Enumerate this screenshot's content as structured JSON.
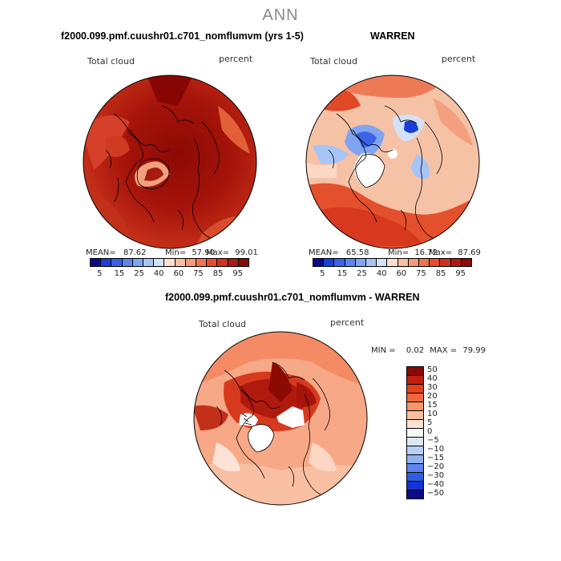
{
  "main_title": "ANN",
  "panels": [
    {
      "title": "f2000.099.pmf.cuushr01.c701_nomflumvm (yrs 1-5)",
      "variable": "Total cloud",
      "units": "percent",
      "stats": {
        "mean_label": "MEAN=",
        "mean": "87.62",
        "min_label": "Min=",
        "min": "57.90",
        "max_label": "Max=",
        "max": "99.01"
      }
    },
    {
      "title": "WARREN",
      "variable": "Total cloud",
      "units": "percent",
      "stats": {
        "mean_label": "MEAN=",
        "mean": "65.58",
        "min_label": "Min=",
        "min": "16.72",
        "max_label": "Max=",
        "max": "87.69"
      }
    },
    {
      "title": "f2000.099.pmf.cuushr01.c701_nomflumvm - WARREN",
      "variable": "Total cloud",
      "units": "percent",
      "minmax": {
        "min_label": "MIN =",
        "min": "0.02",
        "max_label": "MAX =",
        "max": "79.99"
      }
    }
  ],
  "abs_colorbar": {
    "colors": [
      "#0a0a8c",
      "#1a3fd6",
      "#3a63e6",
      "#5c85ee",
      "#7fa4f2",
      "#a8c4f6",
      "#d3e2fa",
      "#fbe0d0",
      "#f8bfa0",
      "#f39a78",
      "#ef7450",
      "#e64d2c",
      "#d1301a",
      "#b01a0e",
      "#8a0a04"
    ],
    "labels": [
      "5",
      "15",
      "25",
      "40",
      "60",
      "75",
      "85",
      "95"
    ]
  },
  "diff_colorbar": {
    "colors": [
      "#8a0a04",
      "#c0200e",
      "#e5401e",
      "#f0693e",
      "#f79468",
      "#fbbfa0",
      "#fde2d2",
      "#f7f7f7",
      "#dce8f9",
      "#b8cff5",
      "#8fb1f0",
      "#5c85ee",
      "#2f5ce6",
      "#1234d4",
      "#0a0a8c"
    ],
    "labels": [
      "50",
      "40",
      "30",
      "20",
      "15",
      "10",
      "5",
      "0",
      "−5",
      "−10",
      "−15",
      "−20",
      "−30",
      "−40",
      "−50"
    ]
  }
}
